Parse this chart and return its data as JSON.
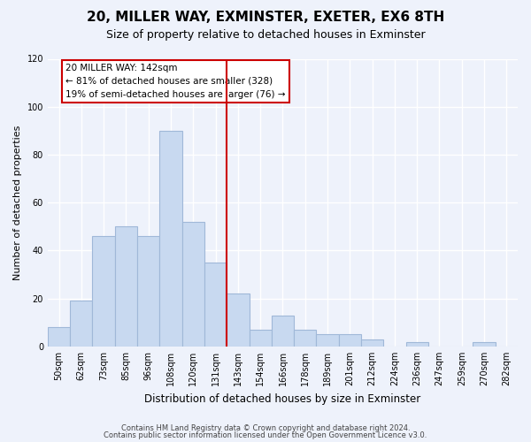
{
  "title": "20, MILLER WAY, EXMINSTER, EXETER, EX6 8TH",
  "subtitle": "Size of property relative to detached houses in Exminster",
  "xlabel": "Distribution of detached houses by size in Exminster",
  "ylabel": "Number of detached properties",
  "bar_labels": [
    "50sqm",
    "62sqm",
    "73sqm",
    "85sqm",
    "96sqm",
    "108sqm",
    "120sqm",
    "131sqm",
    "143sqm",
    "154sqm",
    "166sqm",
    "178sqm",
    "189sqm",
    "201sqm",
    "212sqm",
    "224sqm",
    "236sqm",
    "247sqm",
    "259sqm",
    "270sqm",
    "282sqm"
  ],
  "bar_heights": [
    8,
    19,
    46,
    50,
    46,
    90,
    52,
    35,
    22,
    7,
    13,
    7,
    5,
    5,
    3,
    0,
    2,
    0,
    0,
    2,
    0
  ],
  "bar_color": "#c8d9f0",
  "bar_edge_color": "#a0b8d8",
  "vline_x": 8,
  "vline_color": "#cc0000",
  "annotation_title": "20 MILLER WAY: 142sqm",
  "annotation_line1": "← 81% of detached houses are smaller (328)",
  "annotation_line2": "19% of semi-detached houses are larger (76) →",
  "annotation_box_color": "#ffffff",
  "annotation_box_edge": "#cc0000",
  "ylim": [
    0,
    120
  ],
  "yticks": [
    0,
    20,
    40,
    60,
    80,
    100,
    120
  ],
  "footer1": "Contains HM Land Registry data © Crown copyright and database right 2024.",
  "footer2": "Contains public sector information licensed under the Open Government Licence v3.0.",
  "bg_color": "#eef2fb",
  "plot_bg_color": "#eef2fb"
}
